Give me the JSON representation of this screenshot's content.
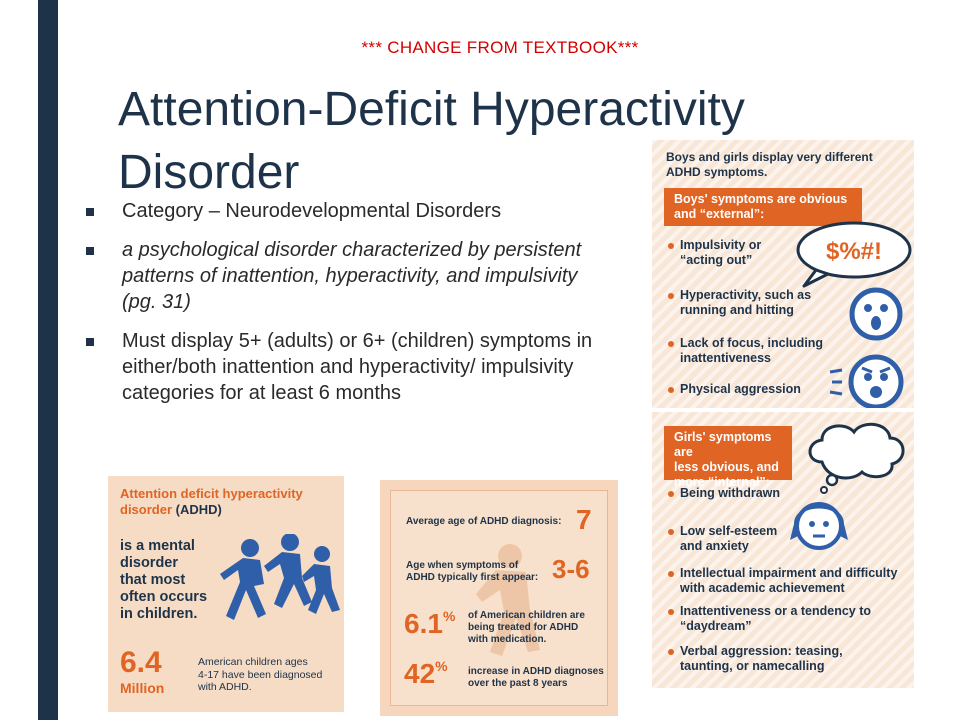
{
  "notice": "*** CHANGE FROM TEXTBOOK***",
  "title_line1": "Attention-Deficit Hyperactivity",
  "title_line2": "Disorder",
  "bullets": [
    "Category – Neurodevelopmental Disorders",
    "a psychological disorder characterized by persistent patterns of inattention, hyperactivity, and impulsivity (pg. 31)",
    "Must display 5+ (adults) or 6+ (children) symptoms in either/both inattention and hyperactivity/ impulsivity categories for at least 6 months"
  ],
  "panel_left": {
    "heading_line1": "Attention deficit hyperactivity",
    "heading_line2_a": "disorder ",
    "heading_line2_b": "(ADHD)",
    "desc": [
      "is a mental",
      "disorder",
      "that most",
      "often occurs",
      "in children."
    ],
    "stat_value": "6.4",
    "stat_unit": "Million",
    "stat_desc": [
      "American children ages",
      "4-17 have been diagnosed",
      "with ADHD."
    ]
  },
  "panel_mid": {
    "row1_label": "Average age of ADHD diagnosis:",
    "row1_value": "7",
    "row2_label_l1": "Age when symptoms of",
    "row2_label_l2": "ADHD typically first appear:",
    "row2_value": "3-6",
    "row3_value": "6.1",
    "row3_unit": "%",
    "row3_desc": [
      "of American children are",
      "being treated for ADHD",
      "with medication."
    ],
    "row4_value": "42",
    "row4_unit": "%",
    "row4_desc": [
      "increase in ADHD diagnoses",
      "over the past 8 years"
    ]
  },
  "panel_right": {
    "header": [
      "Boys and girls display very different",
      "ADHD symptoms."
    ],
    "boys_box": [
      "Boys' symptoms are obvious",
      "and “external”:"
    ],
    "speech": "$%#!",
    "boys_items": [
      [
        "Impulsivity or",
        "“acting out”"
      ],
      [
        "Hyperactivity, such as",
        "running and hitting"
      ],
      [
        "Lack of focus, including",
        "inattentiveness"
      ],
      [
        "Physical aggression"
      ]
    ],
    "girls_box": [
      "Girls' symptoms are",
      "less obvious, and",
      "more “internal”:"
    ],
    "girls_items": [
      [
        "Being withdrawn"
      ],
      [
        "Low self-esteem",
        "and anxiety"
      ],
      [
        "Intellectual impairment and difficulty",
        "with academic achievement"
      ],
      [
        "Inattentiveness or a tendency to",
        "“daydream”"
      ],
      [
        "Verbal aggression: teasing,",
        "taunting, or namecalling"
      ]
    ]
  }
}
